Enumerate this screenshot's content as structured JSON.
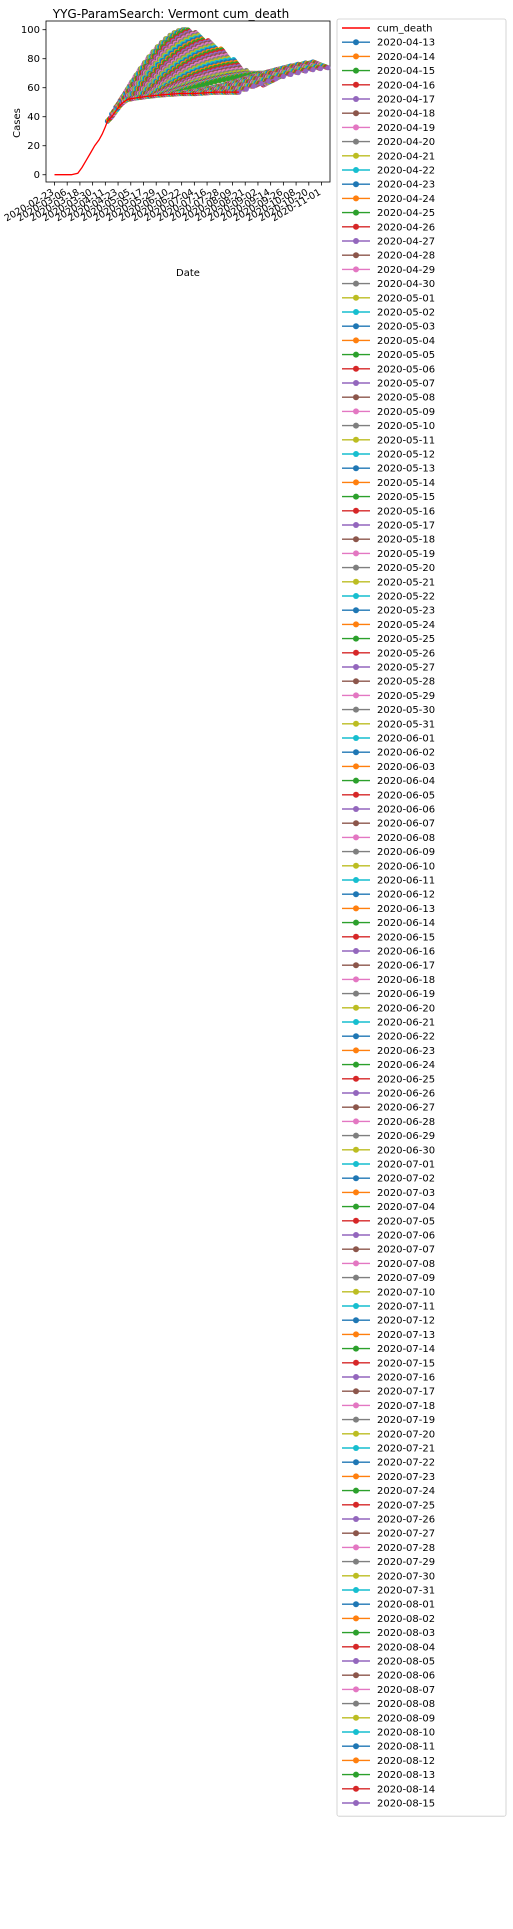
{
  "chart_data": {
    "type": "line",
    "title": "YYG-ParamSearch: Vermont cum_death",
    "xlabel": "Date",
    "ylabel": "Cases",
    "xlim": [
      "2020-02-15",
      "2020-11-09"
    ],
    "ylim": [
      -5,
      106
    ],
    "x_ticks": [
      "2020-02-23",
      "2020-03-06",
      "2020-03-18",
      "2020-03-30",
      "2020-04-11",
      "2020-04-23",
      "2020-05-05",
      "2020-05-17",
      "2020-05-29",
      "2020-06-10",
      "2020-06-22",
      "2020-07-04",
      "2020-07-16",
      "2020-07-28",
      "2020-08-09",
      "2020-08-21",
      "2020-09-02",
      "2020-09-14",
      "2020-09-26",
      "2020-10-08",
      "2020-10-20",
      "2020-11-01"
    ],
    "y_ticks": [
      0,
      20,
      40,
      60,
      80,
      100
    ],
    "grid": false,
    "legend_position": "outside right",
    "observed_series": {
      "name": "cum_death",
      "color": "#ff0000",
      "points": [
        {
          "x": "2020-02-23",
          "y": 0
        },
        {
          "x": "2020-03-10",
          "y": 0
        },
        {
          "x": "2020-03-16",
          "y": 1
        },
        {
          "x": "2020-03-20",
          "y": 5
        },
        {
          "x": "2020-03-24",
          "y": 10
        },
        {
          "x": "2020-03-28",
          "y": 15
        },
        {
          "x": "2020-04-01",
          "y": 20
        },
        {
          "x": "2020-04-05",
          "y": 24
        },
        {
          "x": "2020-04-08",
          "y": 28
        },
        {
          "x": "2020-04-11",
          "y": 33
        },
        {
          "x": "2020-04-13",
          "y": 37
        },
        {
          "x": "2020-04-17",
          "y": 40
        },
        {
          "x": "2020-04-21",
          "y": 44
        },
        {
          "x": "2020-04-25",
          "y": 48
        },
        {
          "x": "2020-04-28",
          "y": 50
        },
        {
          "x": "2020-05-02",
          "y": 52
        },
        {
          "x": "2020-05-10",
          "y": 53
        },
        {
          "x": "2020-05-20",
          "y": 54
        },
        {
          "x": "2020-06-01",
          "y": 55
        },
        {
          "x": "2020-06-20",
          "y": 56
        },
        {
          "x": "2020-07-05",
          "y": 56
        },
        {
          "x": "2020-07-24",
          "y": 57
        },
        {
          "x": "2020-08-10",
          "y": 57
        },
        {
          "x": "2020-08-15",
          "y": 57
        }
      ]
    },
    "projection_series_names": [
      "2020-04-13",
      "2020-04-14",
      "2020-04-15",
      "2020-04-16",
      "2020-04-17",
      "2020-04-18",
      "2020-04-19",
      "2020-04-20",
      "2020-04-21",
      "2020-04-22",
      "2020-04-23",
      "2020-04-24",
      "2020-04-25",
      "2020-04-26",
      "2020-04-27",
      "2020-04-28",
      "2020-04-29",
      "2020-04-30",
      "2020-05-01",
      "2020-05-02",
      "2020-05-03",
      "2020-05-04",
      "2020-05-05",
      "2020-05-06",
      "2020-05-07",
      "2020-05-08",
      "2020-05-09",
      "2020-05-10",
      "2020-05-11",
      "2020-05-12",
      "2020-05-13",
      "2020-05-14",
      "2020-05-15",
      "2020-05-16",
      "2020-05-17",
      "2020-05-18",
      "2020-05-19",
      "2020-05-20",
      "2020-05-21",
      "2020-05-22",
      "2020-05-23",
      "2020-05-24",
      "2020-05-25",
      "2020-05-26",
      "2020-05-27",
      "2020-05-28",
      "2020-05-29",
      "2020-05-30",
      "2020-05-31",
      "2020-06-01",
      "2020-06-02",
      "2020-06-03",
      "2020-06-04",
      "2020-06-05",
      "2020-06-06",
      "2020-06-07",
      "2020-06-08",
      "2020-06-09",
      "2020-06-10",
      "2020-06-11",
      "2020-06-12",
      "2020-06-13",
      "2020-06-14",
      "2020-06-15",
      "2020-06-16",
      "2020-06-17",
      "2020-06-18",
      "2020-06-19",
      "2020-06-20",
      "2020-06-21",
      "2020-06-22",
      "2020-06-23",
      "2020-06-24",
      "2020-06-25",
      "2020-06-26",
      "2020-06-27",
      "2020-06-28",
      "2020-06-29",
      "2020-06-30",
      "2020-07-01",
      "2020-07-02",
      "2020-07-03",
      "2020-07-04",
      "2020-07-05",
      "2020-07-06",
      "2020-07-07",
      "2020-07-08",
      "2020-07-09",
      "2020-07-10",
      "2020-07-11",
      "2020-07-12",
      "2020-07-13",
      "2020-07-14",
      "2020-07-15",
      "2020-07-16",
      "2020-07-17",
      "2020-07-18",
      "2020-07-19",
      "2020-07-20",
      "2020-07-21",
      "2020-07-22",
      "2020-07-23",
      "2020-07-24",
      "2020-07-25",
      "2020-07-26",
      "2020-07-27",
      "2020-07-28",
      "2020-07-29",
      "2020-07-30",
      "2020-07-31",
      "2020-08-01",
      "2020-08-02",
      "2020-08-03",
      "2020-08-04",
      "2020-08-05",
      "2020-08-06",
      "2020-08-07",
      "2020-08-08",
      "2020-08-09",
      "2020-08-10",
      "2020-08-11",
      "2020-08-12",
      "2020-08-13",
      "2020-08-14",
      "2020-08-15"
    ],
    "projection_style": {
      "marker": "circle",
      "horizon_days": 90
    },
    "projection_endpoints": {
      "early_final_values": {
        "2020-04-13": 84,
        "2020-04-20": 100,
        "2020-04-25": 100,
        "2020-05-01": 96,
        "2020-05-15": 86,
        "2020-06-01": 70
      },
      "late_final_values": {
        "2020-06-15": 62,
        "2020-07-01": 68,
        "2020-07-15": 74,
        "2020-08-01": 78,
        "2020-08-15": 74
      }
    },
    "color_cycle": [
      "#1f77b4",
      "#ff7f0e",
      "#2ca02c",
      "#d62728",
      "#9467bd",
      "#8c564b",
      "#e377c2",
      "#7f7f7f",
      "#bcbd22",
      "#17becf"
    ]
  }
}
